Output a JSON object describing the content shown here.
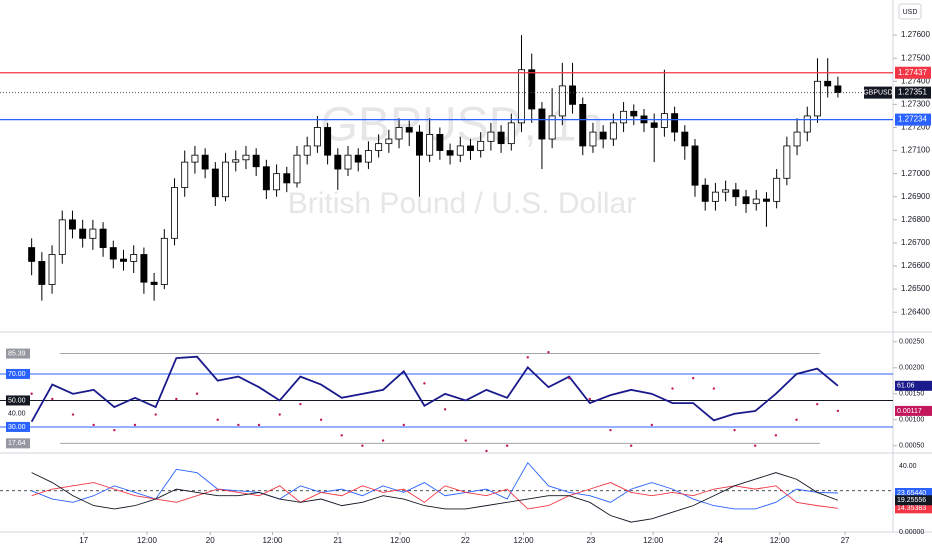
{
  "chart_data": [
    {
      "type": "candlestick",
      "title": "GBPUSD, 1h",
      "subtitle": "British Pound / U.S. Dollar",
      "currency": "USD",
      "symbol": "GBPUSD",
      "open": [
        1.2668,
        1.2662,
        1.2652,
        1.2665,
        1.268,
        1.2676,
        1.2672,
        1.2676,
        1.2668,
        1.2663,
        1.2662,
        1.2665,
        1.2653,
        1.2652,
        1.2672,
        1.2694,
        1.2705,
        1.2708,
        1.2702,
        1.269,
        1.2705,
        1.2706,
        1.2708,
        1.2703,
        1.2693,
        1.27,
        1.2696,
        1.2708,
        1.2712,
        1.272,
        1.2708,
        1.2702,
        1.2708,
        1.2705,
        1.271,
        1.2713,
        1.2715,
        1.272,
        1.2718,
        1.2708,
        1.2717,
        1.271,
        1.2708,
        1.2712,
        1.271,
        1.2714,
        1.2718,
        1.2713,
        1.2722,
        1.2745,
        1.2728,
        1.2715,
        1.2725,
        1.2738,
        1.273,
        1.2712,
        1.2718,
        1.2715,
        1.2722,
        1.2727,
        1.2725,
        1.2722,
        1.272,
        1.2726,
        1.2718,
        1.2712,
        1.2695,
        1.2688,
        1.2692,
        1.2693,
        1.269,
        1.2687,
        1.2689,
        1.2688,
        1.2698,
        1.2712,
        1.2718,
        1.2725,
        1.274,
        1.2738
      ],
      "high": [
        1.2672,
        1.2666,
        1.2669,
        1.2684,
        1.2684,
        1.268,
        1.268,
        1.2679,
        1.2671,
        1.2667,
        1.2669,
        1.2668,
        1.2657,
        1.2676,
        1.2698,
        1.271,
        1.2712,
        1.2711,
        1.2705,
        1.2709,
        1.271,
        1.2712,
        1.2711,
        1.2706,
        1.2704,
        1.2703,
        1.2712,
        1.2716,
        1.2725,
        1.2722,
        1.2711,
        1.2712,
        1.2711,
        1.2714,
        1.2717,
        1.2719,
        1.2724,
        1.2723,
        1.2721,
        1.2724,
        1.272,
        1.2713,
        1.2716,
        1.2715,
        1.2718,
        1.2722,
        1.2721,
        1.2726,
        1.276,
        1.2752,
        1.2731,
        1.2737,
        1.2748,
        1.2748,
        1.2733,
        1.2722,
        1.2721,
        1.2726,
        1.2731,
        1.273,
        1.2728,
        1.2726,
        1.2745,
        1.2729,
        1.2721,
        1.2715,
        1.2698,
        1.2696,
        1.2697,
        1.2696,
        1.2693,
        1.2693,
        1.2692,
        1.2702,
        1.2716,
        1.2724,
        1.2729,
        1.275,
        1.275,
        1.2742
      ],
      "low": [
        1.2656,
        1.2645,
        1.2648,
        1.2661,
        1.2672,
        1.2668,
        1.2667,
        1.2664,
        1.2659,
        1.2658,
        1.2657,
        1.2648,
        1.2645,
        1.265,
        1.2669,
        1.269,
        1.27,
        1.2698,
        1.2686,
        1.2688,
        1.2701,
        1.2702,
        1.2699,
        1.2689,
        1.269,
        1.2692,
        1.2694,
        1.2704,
        1.2709,
        1.2704,
        1.2693,
        1.2699,
        1.2701,
        1.2702,
        1.2707,
        1.2709,
        1.2711,
        1.2712,
        1.269,
        1.2705,
        1.2706,
        1.2704,
        1.2705,
        1.2706,
        1.2707,
        1.271,
        1.2709,
        1.271,
        1.2718,
        1.2722,
        1.2702,
        1.2711,
        1.2721,
        1.2726,
        1.2708,
        1.2709,
        1.2711,
        1.2712,
        1.2718,
        1.2721,
        1.2718,
        1.2705,
        1.2716,
        1.2714,
        1.2706,
        1.269,
        1.2684,
        1.2684,
        1.2688,
        1.2686,
        1.2683,
        1.2684,
        1.2677,
        1.2685,
        1.2695,
        1.2708,
        1.2714,
        1.2722,
        1.2733,
        1.2733
      ],
      "close": [
        1.2662,
        1.2652,
        1.2665,
        1.268,
        1.2676,
        1.2672,
        1.2676,
        1.2668,
        1.2663,
        1.2662,
        1.2665,
        1.2653,
        1.2652,
        1.2672,
        1.2694,
        1.2705,
        1.2708,
        1.2702,
        1.269,
        1.2705,
        1.2706,
        1.2708,
        1.2703,
        1.2693,
        1.27,
        1.2696,
        1.2708,
        1.2712,
        1.272,
        1.2708,
        1.2702,
        1.2708,
        1.2705,
        1.271,
        1.2713,
        1.2715,
        1.272,
        1.2718,
        1.2708,
        1.2717,
        1.271,
        1.2708,
        1.2712,
        1.271,
        1.2714,
        1.2718,
        1.2713,
        1.2722,
        1.2745,
        1.2728,
        1.2715,
        1.2725,
        1.2738,
        1.273,
        1.2712,
        1.2718,
        1.2715,
        1.2722,
        1.2727,
        1.2725,
        1.2722,
        1.272,
        1.2726,
        1.2718,
        1.2712,
        1.2695,
        1.2688,
        1.2692,
        1.2693,
        1.269,
        1.2687,
        1.2689,
        1.2688,
        1.2698,
        1.2712,
        1.2718,
        1.2725,
        1.274,
        1.2738,
        1.27351
      ],
      "up_color": "#ffffff",
      "down_color": "#000000",
      "ylim": [
        1.26323,
        1.27752
      ],
      "yticks": [
        {
          "value": 1.264,
          "label": "1.26400"
        },
        {
          "value": 1.265,
          "label": "1.26500"
        },
        {
          "value": 1.266,
          "label": "1.26600"
        },
        {
          "value": 1.267,
          "label": "1.26700"
        },
        {
          "value": 1.268,
          "label": "1.26800"
        },
        {
          "value": 1.269,
          "label": "1.26900"
        },
        {
          "value": 1.27,
          "label": "1.27000"
        },
        {
          "value": 1.271,
          "label": "1.27100"
        },
        {
          "value": 1.272,
          "label": "1.27200"
        },
        {
          "value": 1.273,
          "label": "1.27300"
        },
        {
          "value": 1.274,
          "label": "1.27400"
        },
        {
          "value": 1.275,
          "label": "1.27500"
        },
        {
          "value": 1.276,
          "label": "1.27600"
        }
      ],
      "xlim": [
        -3.1,
        84.4
      ],
      "xticks": [
        {
          "value": 5.1,
          "label": "17"
        },
        {
          "value": 11.3,
          "label": "12:00"
        },
        {
          "value": 17.5,
          "label": "20"
        },
        {
          "value": 23.6,
          "label": "12:00"
        },
        {
          "value": 30,
          "label": "21"
        },
        {
          "value": 36.1,
          "label": "12:00"
        },
        {
          "value": 42.5,
          "label": "22"
        },
        {
          "value": 48.2,
          "label": "12:00"
        },
        {
          "value": 54.8,
          "label": "23"
        },
        {
          "value": 60.9,
          "label": "12:00"
        },
        {
          "value": 67.3,
          "label": "24"
        },
        {
          "value": 73.3,
          "label": "12:00"
        },
        {
          "value": 79.7,
          "label": "27"
        }
      ],
      "hlines": [
        {
          "value": 1.27437,
          "color": "#f23645"
        },
        {
          "value": 1.27234,
          "color": "#2962ff"
        }
      ]
    },
    {
      "type": "line",
      "ylim": [
        11.1,
        99.4
      ],
      "yticks": [
        {
          "value": 70,
          "label": "70.00",
          "color": "#2962ff"
        },
        {
          "value": 50,
          "label": "50.00",
          "color": "#131722"
        },
        {
          "value": 40,
          "label": "40.00"
        },
        {
          "value": 30,
          "label": "30.00",
          "color": "#2962ff"
        }
      ],
      "bands": [
        85.39,
        17.64
      ],
      "band_color": "#9598a1",
      "y2lim": [
        0.00038,
        0.00263
      ],
      "y2ticks": [
        {
          "value": 0.0005,
          "label": "0.00050"
        },
        {
          "value": 0.001,
          "label": "0.00100"
        },
        {
          "value": 0.0015,
          "label": "0.00150"
        },
        {
          "value": 0.002,
          "label": "0.00200"
        },
        {
          "value": 0.0025,
          "label": "0.00250"
        }
      ],
      "series": [
        {
          "color": "#1a1a8c",
          "values": [
            34,
            62,
            55,
            58,
            45,
            52,
            45,
            82,
            83,
            65,
            68,
            60,
            50,
            68,
            62,
            52,
            55,
            58,
            72,
            46,
            55,
            50,
            58,
            52,
            75,
            60,
            68,
            48,
            54,
            58,
            55,
            48,
            48,
            35,
            40,
            42,
            55,
            70,
            74,
            61.06
          ]
        },
        {
          "color": "#c2185b",
          "axis": "y2",
          "style": "dots",
          "values": [
            0.0015,
            0.0014,
            0.0011,
            0.0009,
            0.0008,
            0.0009,
            0.0011,
            0.0014,
            0.0015,
            0.001,
            0.0009,
            0.0009,
            0.0011,
            0.0013,
            0.001,
            0.0007,
            0.0005,
            0.0006,
            0.0009,
            0.0017,
            0.0012,
            0.0006,
            0.0004,
            0.0005,
            0.0022,
            0.0023,
            0.0018,
            0.0014,
            0.0008,
            0.0005,
            0.0009,
            0.0016,
            0.0018,
            0.0016,
            0.0008,
            0.0005,
            0.0007,
            0.001,
            0.0013,
            0.00117
          ]
        }
      ]
    },
    {
      "type": "line",
      "ylim": [
        0,
        46.7
      ],
      "yticks": [
        {
          "value": 0,
          "label": "0.00000"
        },
        {
          "value": 40,
          "label": "40.00"
        }
      ],
      "hline": 25,
      "series": [
        {
          "color": "#2962ff",
          "last_label": "23.65440",
          "values": [
            25,
            20,
            18,
            22,
            28,
            24,
            20,
            38,
            36,
            26,
            25,
            24,
            20,
            28,
            24,
            26,
            22,
            28,
            24,
            30,
            22,
            24,
            26,
            20,
            42,
            28,
            24,
            22,
            18,
            26,
            30,
            26,
            20,
            16,
            14,
            14,
            18,
            26,
            24,
            23.6544
          ]
        },
        {
          "color": "#f23645",
          "last_label": "14.35383",
          "values": [
            22,
            26,
            28,
            30,
            26,
            22,
            20,
            18,
            22,
            26,
            24,
            22,
            28,
            18,
            24,
            22,
            28,
            24,
            26,
            18,
            28,
            24,
            22,
            26,
            14,
            16,
            22,
            26,
            30,
            24,
            22,
            24,
            22,
            26,
            28,
            26,
            28,
            18,
            16,
            14.35383
          ]
        },
        {
          "color": "#131722",
          "last_label": "19.25556",
          "values": [
            36,
            30,
            22,
            16,
            14,
            16,
            20,
            26,
            24,
            22,
            22,
            24,
            20,
            18,
            20,
            16,
            18,
            22,
            20,
            16,
            14,
            14,
            16,
            18,
            20,
            22,
            22,
            18,
            10,
            6,
            8,
            12,
            16,
            22,
            28,
            32,
            36,
            32,
            24,
            19.25556
          ]
        }
      ]
    }
  ]
}
